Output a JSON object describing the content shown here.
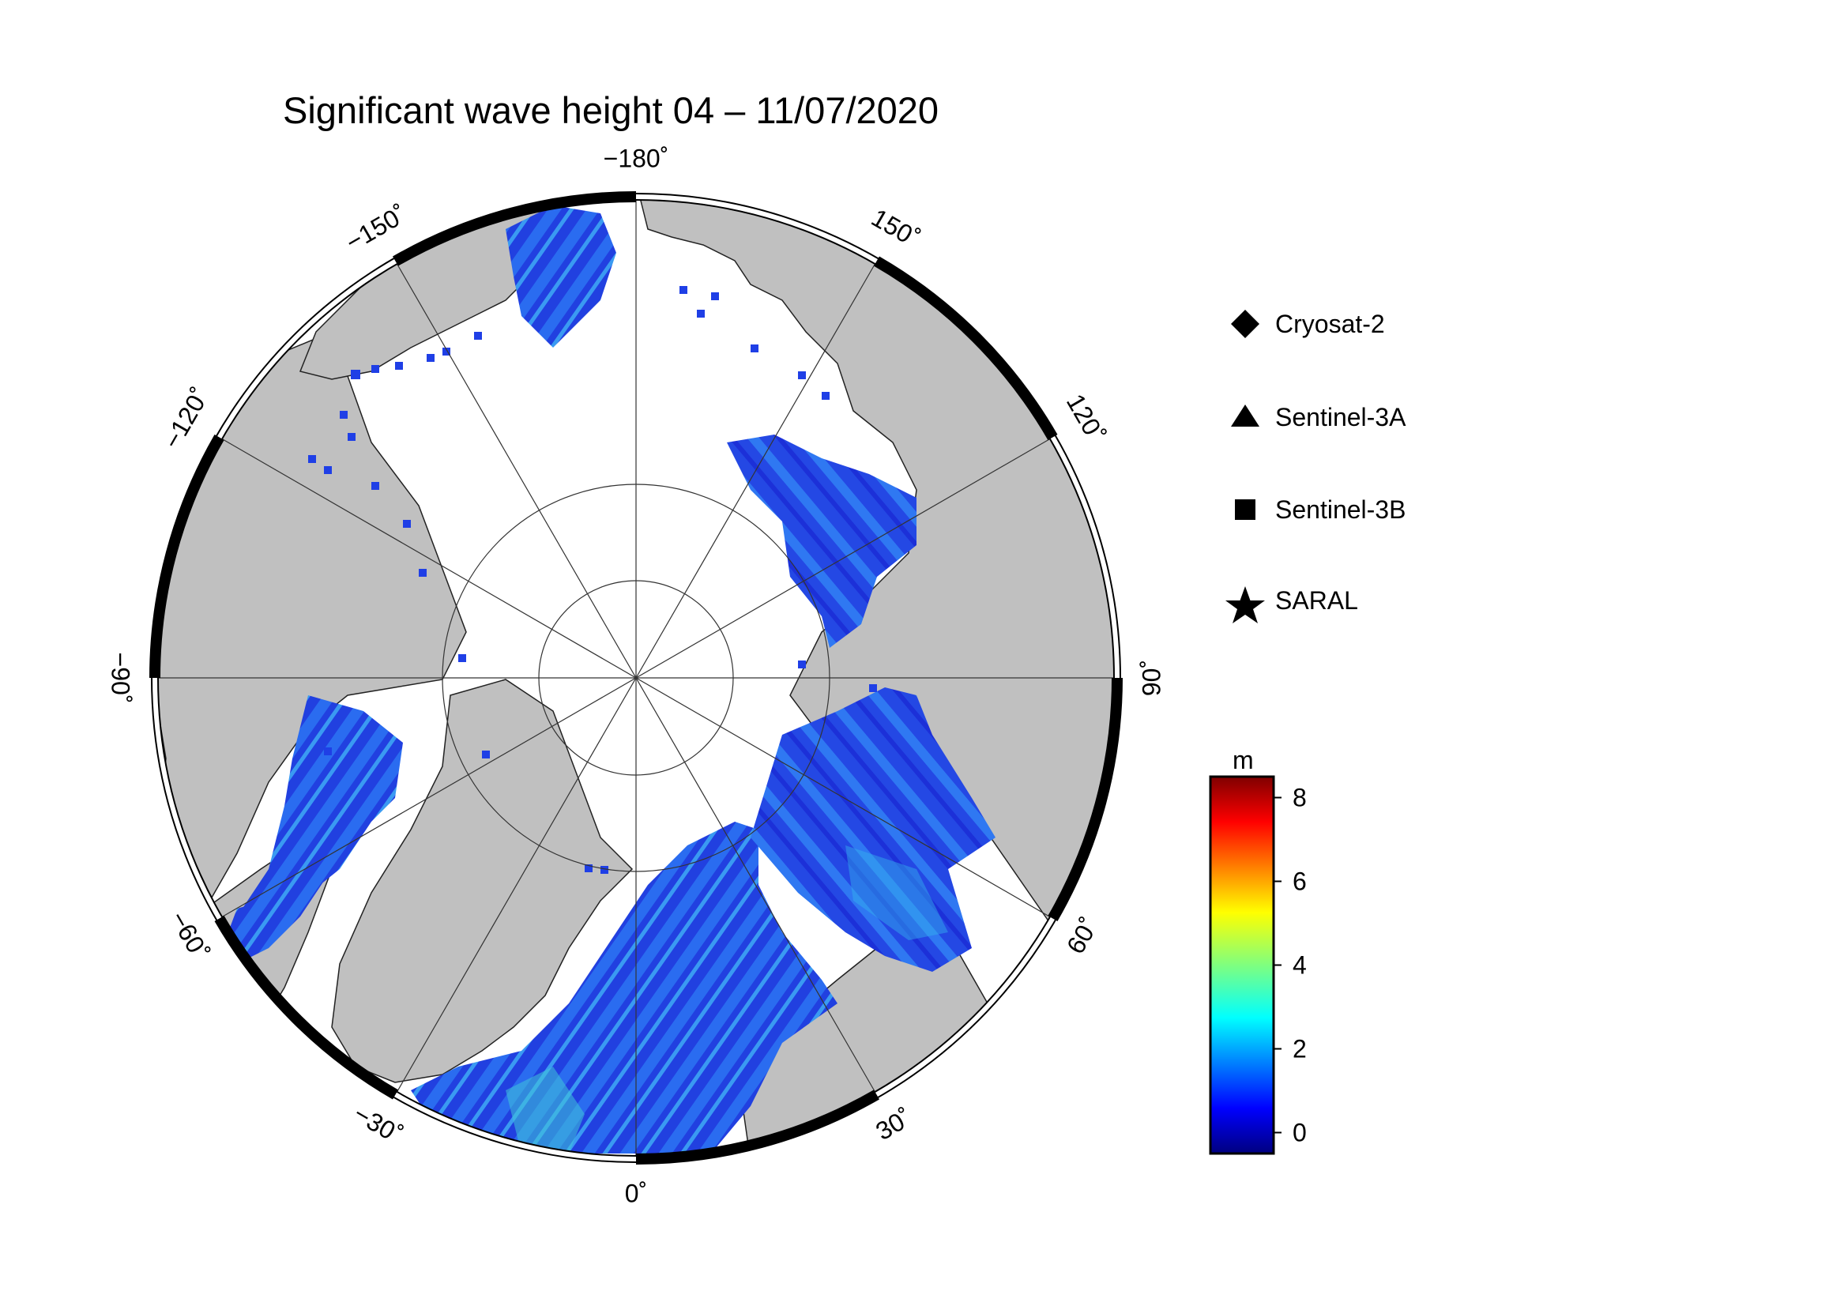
{
  "title": "Significant wave height 04 – 11/07/2020",
  "longitude_labels": [
    {
      "value": -180,
      "text": "−180˚"
    },
    {
      "value": 150,
      "text": "150˚"
    },
    {
      "value": 120,
      "text": "120˚"
    },
    {
      "value": 90,
      "text": "90˚"
    },
    {
      "value": 60,
      "text": "60˚"
    },
    {
      "value": 30,
      "text": "30˚"
    },
    {
      "value": 0,
      "text": "0˚"
    },
    {
      "value": -30,
      "text": "−30˚"
    },
    {
      "value": -60,
      "text": "−60˚"
    },
    {
      "value": -90,
      "text": "−90˚"
    },
    {
      "value": -120,
      "text": "−120˚"
    },
    {
      "value": -150,
      "text": "−150˚"
    }
  ],
  "legend": [
    {
      "name": "Cryosat-2",
      "marker": "diamond-icon"
    },
    {
      "name": "Sentinel-3A",
      "marker": "triangle-icon"
    },
    {
      "name": "Sentinel-3B",
      "marker": "square-icon"
    },
    {
      "name": "SARAL",
      "marker": "star-icon"
    }
  ],
  "colorbar": {
    "unit": "m",
    "ticks": [
      "0",
      "2",
      "4",
      "6",
      "8"
    ],
    "range": [
      -0.5,
      8.5
    ],
    "colormap": "jet"
  },
  "colors": {
    "land": "#c0c0c0",
    "ice": "#ffffff",
    "low_wave": "#1f3fe6",
    "mid_wave": "#22a8ee",
    "high_wave": "#60e070"
  }
}
